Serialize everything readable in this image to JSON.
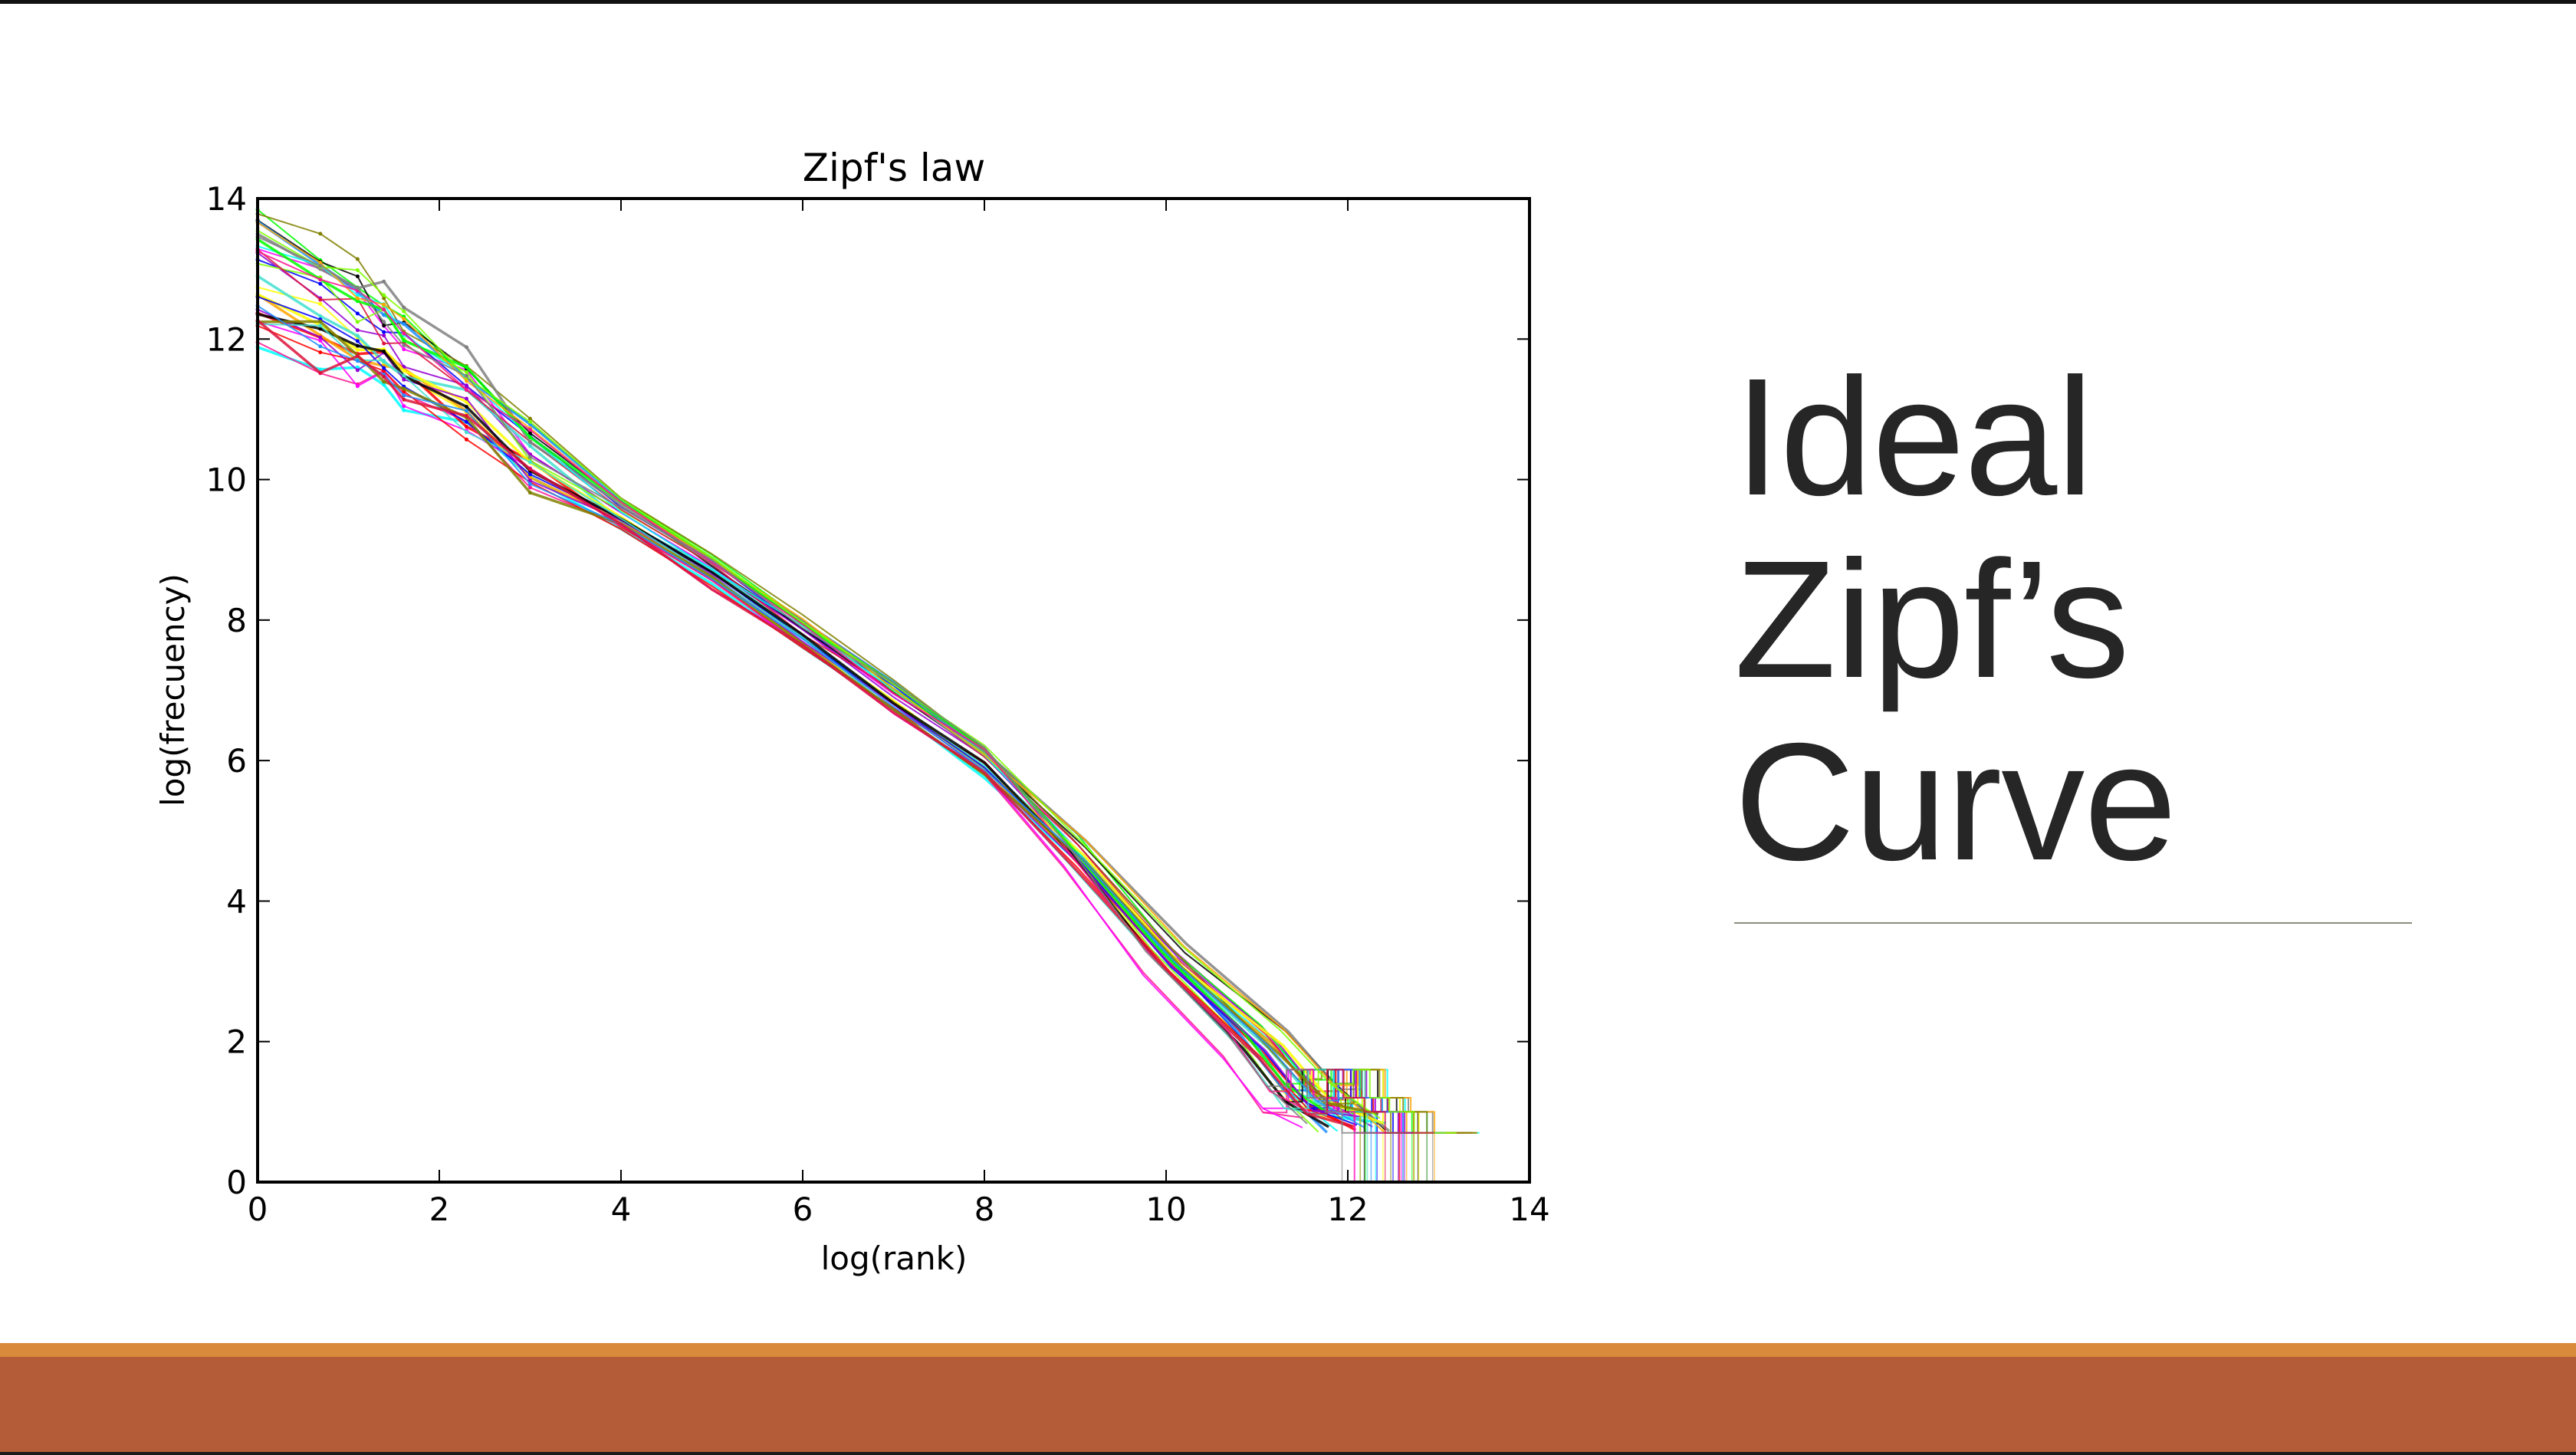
{
  "slide": {
    "title_lines": [
      "Ideal",
      "Zipf’s",
      "Curve"
    ],
    "colors": {
      "background": "#ffffff",
      "footer": "#b45c37",
      "footer_accent": "#d98a3a",
      "title": "#262626"
    }
  },
  "chart_data": {
    "type": "line",
    "title": "Zipf's law",
    "xlabel": "log(rank)",
    "ylabel": "log(frecuency)",
    "xlim": [
      0,
      14
    ],
    "ylim": [
      0,
      14
    ],
    "xticks": [
      0,
      2,
      4,
      6,
      8,
      10,
      12,
      14
    ],
    "yticks": [
      0,
      2,
      4,
      6,
      8,
      10,
      12,
      14
    ],
    "grid": false,
    "legend": "none",
    "series_count": 32,
    "x": [
      0,
      0.69,
      1.1,
      1.39,
      1.61,
      2.3,
      3,
      4,
      5,
      6,
      7,
      8,
      9,
      10,
      11,
      11.5,
      12
    ],
    "y": [
      12.9,
      12.5,
      12.2,
      12.0,
      11.7,
      11.2,
      10.3,
      9.5,
      8.7,
      7.8,
      6.9,
      6.0,
      4.7,
      3.2,
      2.0,
      1.2,
      0.0
    ],
    "colors": [
      "#00ffff",
      "#ff00ff",
      "#ffff00",
      "#ff0000",
      "#0000ff",
      "#00ff00",
      "#ffa500",
      "#9400d3",
      "#000000",
      "#40e0d0",
      "#ff1493",
      "#808000",
      "#1e90ff",
      "#7fff00",
      "#dc143c",
      "#808080"
    ]
  }
}
